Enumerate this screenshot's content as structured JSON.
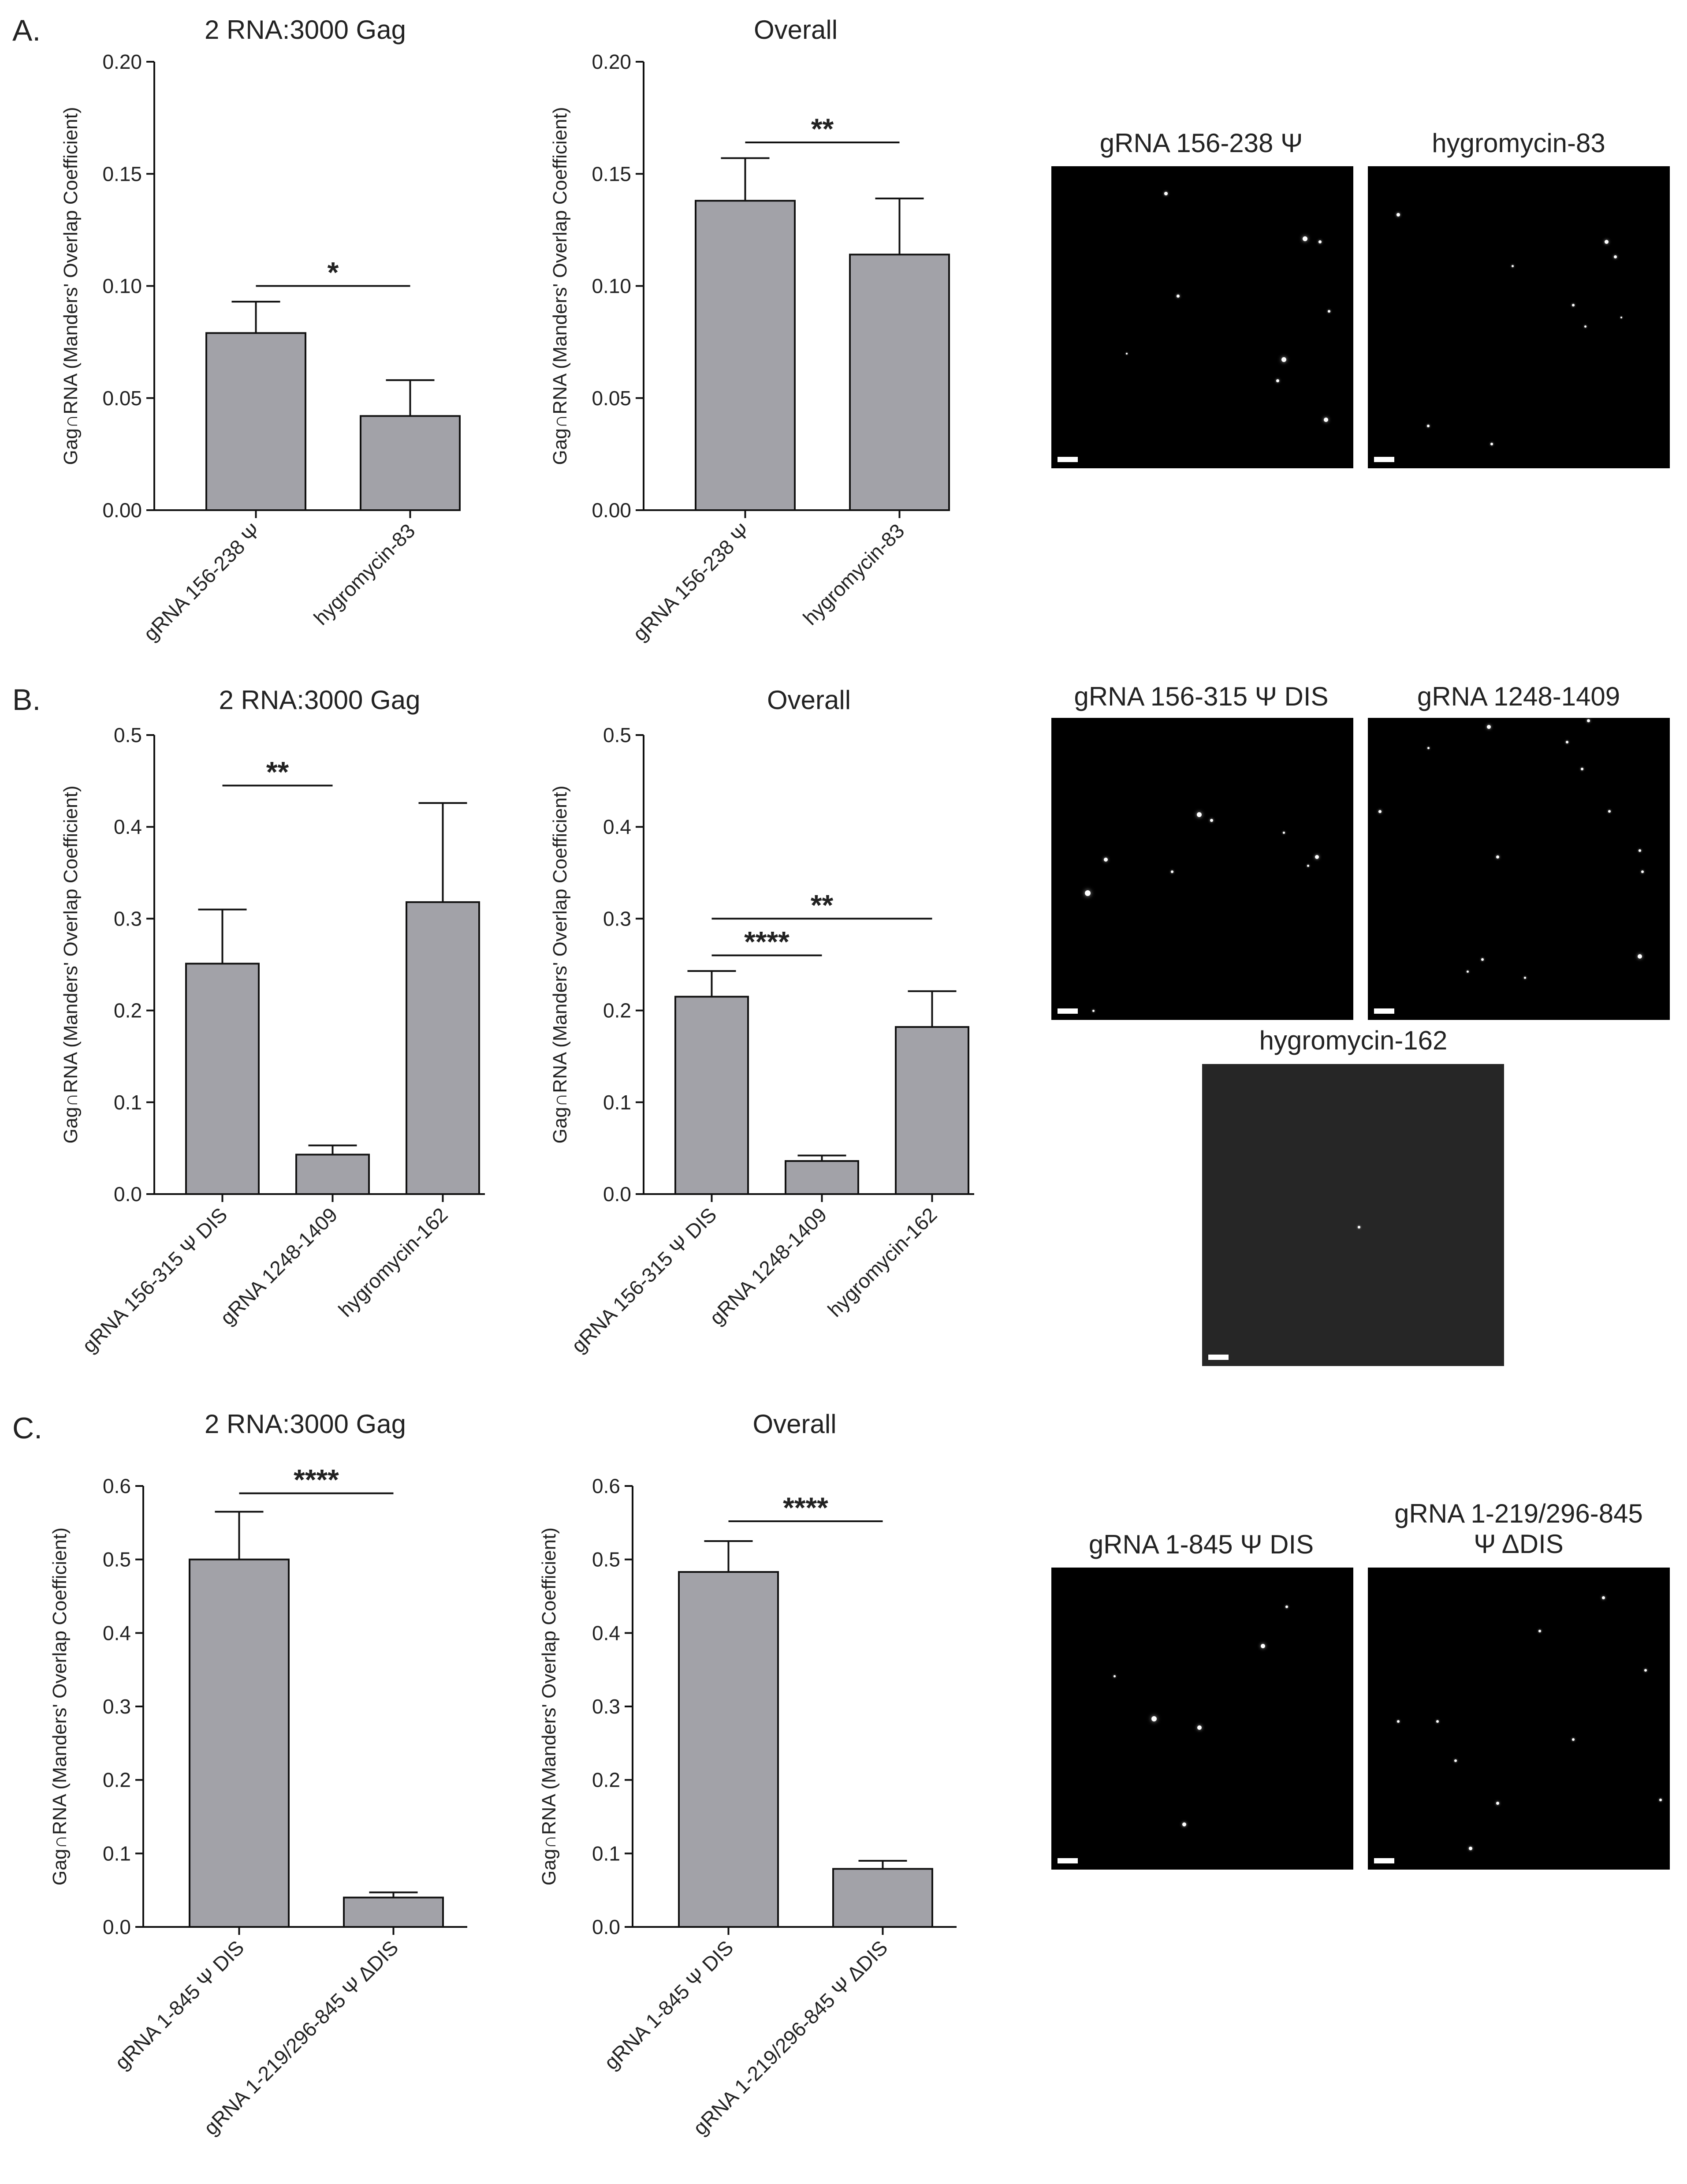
{
  "panels": [
    {
      "letter": "A.",
      "charts": [
        0,
        1
      ],
      "images": [
        0,
        1
      ]
    },
    {
      "letter": "B.",
      "charts": [
        2,
        3
      ],
      "images": [
        2,
        3,
        4
      ]
    },
    {
      "letter": "C.",
      "charts": [
        4,
        5
      ],
      "images": [
        5,
        6
      ]
    }
  ],
  "colors": {
    "bar_fill": "#a2a2a8",
    "bar_stroke": "#111111",
    "axis": "#111111",
    "text": "#222222",
    "image_bg": "#000000",
    "image_bg_dim": "#262626"
  },
  "chart_data": [
    {
      "type": "bar",
      "title": "2 RNA:3000 Gag",
      "ylabel": "Gag∩RNA (Manders' Overlap Coefficient)",
      "categories": [
        "gRNA 156-238 Ψ",
        "hygromycin-83"
      ],
      "values": [
        0.079,
        0.042
      ],
      "errors": [
        0.014,
        0.016
      ],
      "ylim": [
        0,
        0.2
      ],
      "yticks": [
        "0.00",
        "0.05",
        "0.10",
        "0.15",
        "0.20"
      ],
      "significance": [
        {
          "from": 0,
          "to": 1,
          "label": "*",
          "y": 0.1
        }
      ]
    },
    {
      "type": "bar",
      "title": "Overall",
      "ylabel": "Gag∩RNA (Manders' Overlap Coefficient)",
      "categories": [
        "gRNA 156-238 Ψ",
        "hygromycin-83"
      ],
      "values": [
        0.138,
        0.114
      ],
      "errors": [
        0.019,
        0.025
      ],
      "ylim": [
        0,
        0.2
      ],
      "yticks": [
        "0.00",
        "0.05",
        "0.10",
        "0.15",
        "0.20"
      ],
      "significance": [
        {
          "from": 0,
          "to": 1,
          "label": "**",
          "y": 0.164
        }
      ]
    },
    {
      "type": "bar",
      "title": "2 RNA:3000 Gag",
      "ylabel": "Gag∩RNA (Manders' Overlap Coefficient)",
      "categories": [
        "gRNA 156-315 Ψ DIS",
        "gRNA 1248-1409",
        "hygromycin-162"
      ],
      "values": [
        0.251,
        0.043,
        0.318
      ],
      "errors": [
        0.059,
        0.01,
        0.108
      ],
      "ylim": [
        0,
        0.5
      ],
      "yticks": [
        "0.0",
        "0.1",
        "0.2",
        "0.3",
        "0.4",
        "0.5"
      ],
      "significance": [
        {
          "from": 0,
          "to": 1,
          "label": "**",
          "y": 0.445
        }
      ]
    },
    {
      "type": "bar",
      "title": "Overall",
      "ylabel": "Gag∩RNA (Manders' Overlap Coefficient)",
      "categories": [
        "gRNA 156-315 Ψ DIS",
        "gRNA 1248-1409",
        "hygromycin-162"
      ],
      "values": [
        0.215,
        0.036,
        0.182
      ],
      "errors": [
        0.028,
        0.006,
        0.039
      ],
      "ylim": [
        0,
        0.5
      ],
      "yticks": [
        "0.0",
        "0.1",
        "0.2",
        "0.3",
        "0.4",
        "0.5"
      ],
      "significance": [
        {
          "from": 0,
          "to": 1,
          "label": "****",
          "y": 0.26
        },
        {
          "from": 0,
          "to": 2,
          "label": "**",
          "y": 0.3
        }
      ]
    },
    {
      "type": "bar",
      "title": "2 RNA:3000 Gag",
      "ylabel": "Gag∩RNA (Manders' Overlap Coefficient)",
      "categories": [
        "gRNA 1-845 Ψ DIS",
        "gRNA 1-219/296-845 Ψ ΔDIS"
      ],
      "values": [
        0.5,
        0.04
      ],
      "errors": [
        0.065,
        0.007
      ],
      "ylim": [
        0,
        0.6
      ],
      "yticks": [
        "0.0",
        "0.1",
        "0.2",
        "0.3",
        "0.4",
        "0.5",
        "0.6"
      ],
      "significance": [
        {
          "from": 0,
          "to": 1,
          "label": "****",
          "y": 0.59
        }
      ]
    },
    {
      "type": "bar",
      "title": "Overall",
      "ylabel": "Gag∩RNA (Manders' Overlap Coefficient)",
      "categories": [
        "gRNA 1-845 Ψ DIS",
        "gRNA 1-219/296-845 Ψ ΔDIS"
      ],
      "values": [
        0.483,
        0.079
      ],
      "errors": [
        0.042,
        0.011
      ],
      "ylim": [
        0,
        0.6
      ],
      "yticks": [
        "0.0",
        "0.1",
        "0.2",
        "0.3",
        "0.4",
        "0.5",
        "0.6"
      ],
      "significance": [
        {
          "from": 0,
          "to": 1,
          "label": "****",
          "y": 0.552
        }
      ]
    }
  ],
  "images": [
    {
      "title": "gRNA 156-238 Ψ",
      "background": "#000000"
    },
    {
      "title": "hygromycin-83",
      "background": "#000000"
    },
    {
      "title": "gRNA 156-315 Ψ DIS",
      "background": "#000000"
    },
    {
      "title": "gRNA 1248-1409",
      "background": "#000000"
    },
    {
      "title": "hygromycin-162",
      "background": "#262626"
    },
    {
      "title": "gRNA 1-845 Ψ DIS",
      "background": "#000000"
    },
    {
      "title": "gRNA 1-219/296-845\nΨ ΔDIS",
      "background": "#000000"
    }
  ]
}
